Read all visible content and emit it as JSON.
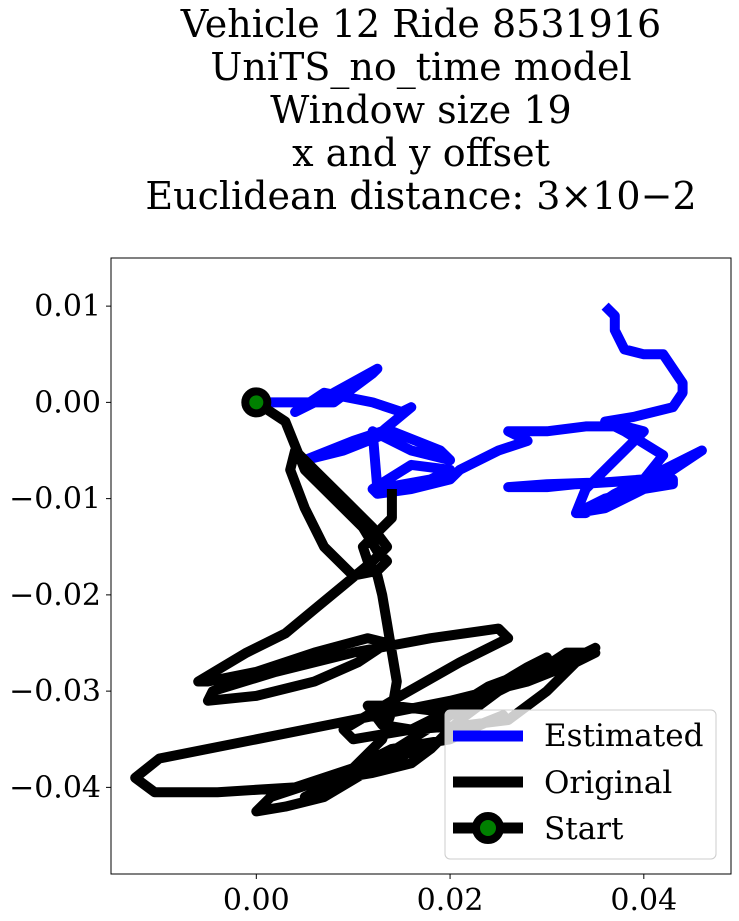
{
  "chart_data": {
    "type": "line",
    "title_lines": [
      "Vehicle 12 Ride 8531916",
      "UniTS_no_time model",
      "Window size 19",
      "x and y offset",
      "Euclidean distance: 3×10−2"
    ],
    "xlim": [
      -0.015,
      0.049
    ],
    "ylim": [
      -0.049,
      0.015
    ],
    "xticks": [
      0.0,
      0.02,
      0.04
    ],
    "xtick_labels": [
      "0.00",
      "0.02",
      "0.04"
    ],
    "yticks": [
      0.01,
      0.0,
      -0.01,
      -0.02,
      -0.03,
      -0.04
    ],
    "ytick_labels": [
      "0.01",
      "0.00",
      "−0.01",
      "−0.02",
      "−0.03",
      "−0.04"
    ],
    "grid": false,
    "legend_position": "lower-right",
    "series": [
      {
        "name": "Estimated",
        "color": "#0000ff",
        "x": [
          0.0,
          0.004,
          0.008,
          0.012,
          0.0125,
          0.008,
          0.004,
          0.007,
          0.012,
          0.015,
          0.016,
          0.013,
          0.01,
          0.005,
          0.009,
          0.014,
          0.019,
          0.02,
          0.016,
          0.012,
          0.0125,
          0.018,
          0.02,
          0.016,
          0.012,
          0.0125,
          0.016,
          0.02,
          0.021,
          0.025,
          0.028,
          0.026,
          0.03,
          0.034,
          0.038,
          0.04,
          0.037,
          0.034,
          0.033,
          0.036,
          0.04,
          0.043,
          0.046,
          0.042,
          0.037,
          0.034,
          0.033,
          0.036,
          0.04,
          0.043,
          0.043,
          0.038,
          0.033,
          0.03,
          0.026,
          0.03,
          0.036,
          0.04,
          0.042,
          0.038,
          0.036,
          0.039,
          0.043,
          0.044,
          0.044,
          0.043,
          0.042,
          0.04,
          0.038,
          0.037,
          0.037,
          0.036
        ],
        "y": [
          0.0,
          0.0,
          0.0,
          0.003,
          0.0035,
          0.001,
          -0.001,
          0.001,
          0.0,
          -0.001,
          -0.0005,
          -0.003,
          -0.004,
          -0.006,
          -0.005,
          -0.003,
          -0.005,
          -0.006,
          -0.005,
          -0.003,
          -0.009,
          -0.008,
          -0.007,
          -0.0065,
          -0.009,
          -0.0095,
          -0.009,
          -0.008,
          -0.007,
          -0.005,
          -0.004,
          -0.003,
          -0.003,
          -0.0025,
          -0.0025,
          -0.003,
          -0.006,
          -0.009,
          -0.0115,
          -0.011,
          -0.009,
          -0.007,
          -0.005,
          -0.007,
          -0.0095,
          -0.0115,
          -0.0115,
          -0.01,
          -0.009,
          -0.0085,
          -0.008,
          -0.0082,
          -0.0085,
          -0.0088,
          -0.0088,
          -0.0085,
          -0.0083,
          -0.008,
          -0.0055,
          -0.003,
          -0.002,
          -0.0015,
          -0.0005,
          0.001,
          0.002,
          0.0035,
          0.005,
          0.005,
          0.0055,
          0.0075,
          0.009,
          0.01
        ]
      },
      {
        "name": "Original",
        "color": "#000000",
        "x": [
          0.0,
          0.003,
          0.004,
          0.005,
          0.007,
          0.009,
          0.011,
          0.0125,
          0.0135,
          0.0125,
          0.01,
          0.007,
          0.005,
          0.0035,
          0.004,
          0.006,
          0.009,
          0.012,
          0.0135,
          0.012,
          0.009,
          0.006,
          0.003,
          -0.001,
          -0.006,
          -0.005,
          0.0,
          0.006,
          0.0115,
          0.0135,
          0.0105,
          0.006,
          0.0,
          -0.005,
          -0.0045,
          0.002,
          0.01,
          0.018,
          0.025,
          0.026,
          0.021,
          0.014,
          0.009,
          0.01,
          0.016,
          0.022,
          0.026,
          0.03,
          0.034,
          0.035,
          0.033,
          0.028,
          0.024,
          0.02,
          0.016,
          0.013,
          0.0115,
          0.014,
          0.018,
          0.023,
          0.028,
          0.03,
          0.028,
          0.024,
          0.02,
          0.016,
          0.012,
          0.008,
          0.005,
          0.006,
          0.01,
          0.014,
          0.017,
          0.02,
          0.022,
          0.0255,
          0.023,
          0.018,
          0.012,
          0.007,
          0.003,
          0.0,
          0.0015,
          0.006,
          0.012,
          0.016,
          0.018,
          0.021,
          0.025,
          0.029,
          0.032,
          0.035,
          0.033,
          0.028,
          0.02,
          0.01,
          0.0,
          -0.01,
          -0.0125,
          -0.0105,
          -0.004,
          0.004,
          0.01,
          0.013,
          0.014,
          0.0145,
          0.014,
          0.0135,
          0.013,
          0.0125,
          0.0115,
          0.011,
          0.012,
          0.014,
          0.014
        ],
        "y": [
          0.0,
          -0.002,
          -0.0045,
          -0.007,
          -0.009,
          -0.011,
          -0.013,
          -0.0155,
          -0.0165,
          -0.0175,
          -0.018,
          -0.015,
          -0.011,
          -0.007,
          -0.005,
          -0.007,
          -0.01,
          -0.013,
          -0.015,
          -0.0165,
          -0.019,
          -0.0215,
          -0.024,
          -0.026,
          -0.029,
          -0.029,
          -0.028,
          -0.026,
          -0.0245,
          -0.025,
          -0.027,
          -0.029,
          -0.0305,
          -0.031,
          -0.03,
          -0.028,
          -0.026,
          -0.0245,
          -0.0235,
          -0.0245,
          -0.027,
          -0.031,
          -0.034,
          -0.035,
          -0.034,
          -0.0335,
          -0.033,
          -0.03,
          -0.026,
          -0.0255,
          -0.0265,
          -0.028,
          -0.0295,
          -0.032,
          -0.034,
          -0.0335,
          -0.0315,
          -0.0315,
          -0.032,
          -0.0305,
          -0.0275,
          -0.0265,
          -0.0275,
          -0.03,
          -0.0325,
          -0.035,
          -0.0375,
          -0.04,
          -0.041,
          -0.0405,
          -0.038,
          -0.036,
          -0.0355,
          -0.035,
          -0.034,
          -0.0325,
          -0.0335,
          -0.0355,
          -0.038,
          -0.041,
          -0.042,
          -0.0425,
          -0.041,
          -0.0395,
          -0.0385,
          -0.0375,
          -0.036,
          -0.033,
          -0.03,
          -0.028,
          -0.026,
          -0.026,
          -0.027,
          -0.029,
          -0.031,
          -0.033,
          -0.035,
          -0.037,
          -0.039,
          -0.0405,
          -0.0405,
          -0.04,
          -0.038,
          -0.035,
          -0.032,
          -0.029,
          -0.026,
          -0.023,
          -0.02,
          -0.018,
          -0.0165,
          -0.015,
          -0.014,
          -0.012,
          -0.009
        ]
      },
      {
        "name": "Start",
        "color": "#000000",
        "marker_color": "#008000",
        "x": [
          0.0
        ],
        "y": [
          0.0
        ]
      }
    ]
  }
}
